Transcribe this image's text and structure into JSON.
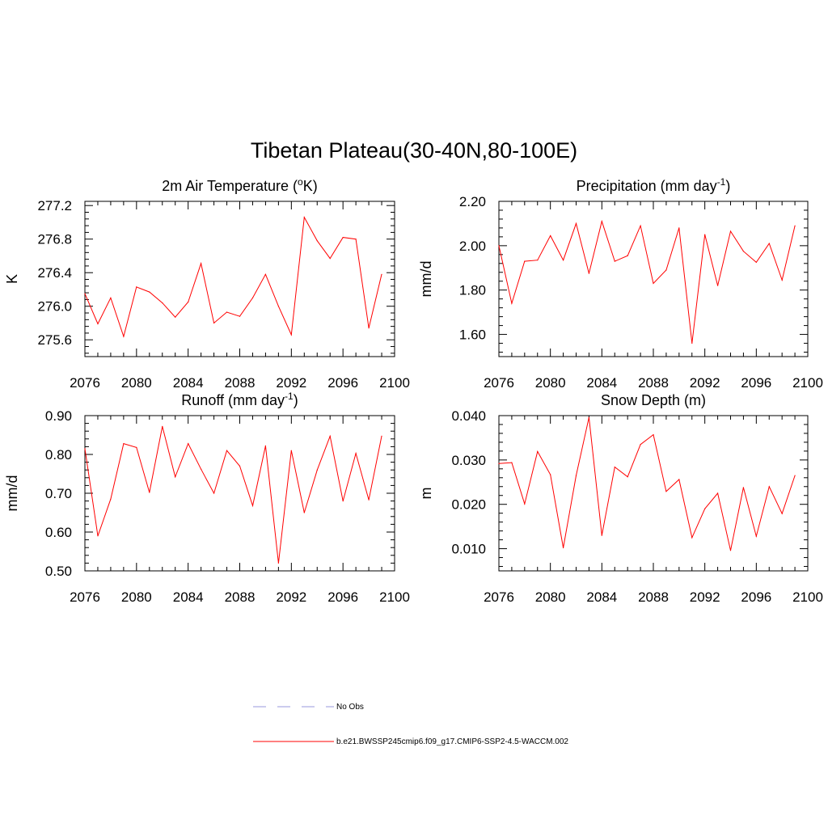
{
  "figure": {
    "title": "Tibetan Plateau(30-40N,80-100E)"
  },
  "legend": {
    "items": [
      {
        "label": "No Obs",
        "color": "#9999dd",
        "style": "dashed"
      },
      {
        "label": "b.e21.BWSSP245cmip6.f09_g17.CMIP6-SSP2-4.5-WACCM.002",
        "color": "#ff0000",
        "style": "solid"
      }
    ]
  },
  "chart_data": [
    {
      "type": "line",
      "title": "2m Air Temperature (°K)",
      "ylabel": "K",
      "xlabel": "",
      "xlim": [
        2076,
        2100
      ],
      "ylim": [
        275.4,
        277.25
      ],
      "xticks": [
        "2076",
        "2080",
        "2084",
        "2088",
        "2092",
        "2096",
        "2100"
      ],
      "yticks": [
        "275.6",
        "276.0",
        "276.4",
        "276.8",
        "277.2"
      ],
      "color": "#ff0000",
      "x": [
        2076,
        2077,
        2078,
        2079,
        2080,
        2081,
        2082,
        2083,
        2084,
        2085,
        2086,
        2087,
        2088,
        2089,
        2090,
        2091,
        2092,
        2093,
        2094,
        2095,
        2096,
        2097,
        2098,
        2099
      ],
      "values": [
        276.15,
        275.79,
        276.1,
        275.64,
        276.23,
        276.17,
        276.04,
        275.87,
        276.05,
        276.51,
        275.8,
        275.93,
        275.88,
        276.1,
        276.38,
        276.0,
        275.66,
        277.06,
        276.78,
        276.57,
        276.82,
        276.8,
        275.74,
        276.38
      ]
    },
    {
      "type": "line",
      "title": "Precipitation (mm day-1)",
      "ylabel": "mm/d",
      "xlabel": "",
      "xlim": [
        2076,
        2100
      ],
      "ylim": [
        1.5,
        2.2
      ],
      "xticks": [
        "2076",
        "2080",
        "2084",
        "2088",
        "2092",
        "2096",
        "2100"
      ],
      "yticks": [
        "1.60",
        "1.80",
        "2.00",
        "2.20"
      ],
      "color": "#ff0000",
      "x": [
        2076,
        2077,
        2078,
        2079,
        2080,
        2081,
        2082,
        2083,
        2084,
        2085,
        2086,
        2087,
        2088,
        2089,
        2090,
        2091,
        2092,
        2093,
        2094,
        2095,
        2096,
        2097,
        2098,
        2099
      ],
      "values": [
        2.0,
        1.74,
        1.93,
        1.935,
        2.045,
        1.935,
        2.1,
        1.875,
        2.11,
        1.93,
        1.955,
        2.09,
        1.83,
        1.89,
        2.08,
        1.56,
        2.05,
        1.82,
        2.065,
        1.975,
        1.925,
        2.01,
        1.845,
        2.09
      ]
    },
    {
      "type": "line",
      "title": "Runoff (mm day-1)",
      "ylabel": "mm/d",
      "xlabel": "",
      "xlim": [
        2076,
        2100
      ],
      "ylim": [
        0.5,
        0.9
      ],
      "xticks": [
        "2076",
        "2080",
        "2084",
        "2088",
        "2092",
        "2096",
        "2100"
      ],
      "yticks": [
        "0.50",
        "0.60",
        "0.70",
        "0.80",
        "0.90"
      ],
      "color": "#ff0000",
      "x": [
        2076,
        2077,
        2078,
        2079,
        2080,
        2081,
        2082,
        2083,
        2084,
        2085,
        2086,
        2087,
        2088,
        2089,
        2090,
        2091,
        2092,
        2093,
        2094,
        2095,
        2096,
        2097,
        2098,
        2099
      ],
      "values": [
        0.815,
        0.59,
        0.685,
        0.828,
        0.818,
        0.702,
        0.872,
        0.742,
        0.828,
        0.762,
        0.7,
        0.81,
        0.77,
        0.668,
        0.822,
        0.52,
        0.81,
        0.65,
        0.76,
        0.847,
        0.68,
        0.803,
        0.683,
        0.847
      ]
    },
    {
      "type": "line",
      "title": "Snow Depth (m)",
      "ylabel": "m",
      "xlabel": "",
      "xlim": [
        2076,
        2100
      ],
      "ylim": [
        0.005,
        0.04
      ],
      "xticks": [
        "2076",
        "2080",
        "2084",
        "2088",
        "2092",
        "2096",
        "2100"
      ],
      "yticks": [
        "0.010",
        "0.020",
        "0.030",
        "0.040"
      ],
      "color": "#ff0000",
      "x": [
        2076,
        2077,
        2078,
        2079,
        2080,
        2081,
        2082,
        2083,
        2084,
        2085,
        2086,
        2087,
        2088,
        2089,
        2090,
        2091,
        2092,
        2093,
        2094,
        2095,
        2096,
        2097,
        2098,
        2099
      ],
      "values": [
        0.0292,
        0.0294,
        0.0201,
        0.0319,
        0.0267,
        0.0102,
        0.0265,
        0.0396,
        0.013,
        0.0284,
        0.0262,
        0.0335,
        0.0357,
        0.0229,
        0.0256,
        0.0125,
        0.019,
        0.0225,
        0.0096,
        0.0238,
        0.0128,
        0.024,
        0.0179,
        0.0265
      ]
    }
  ]
}
